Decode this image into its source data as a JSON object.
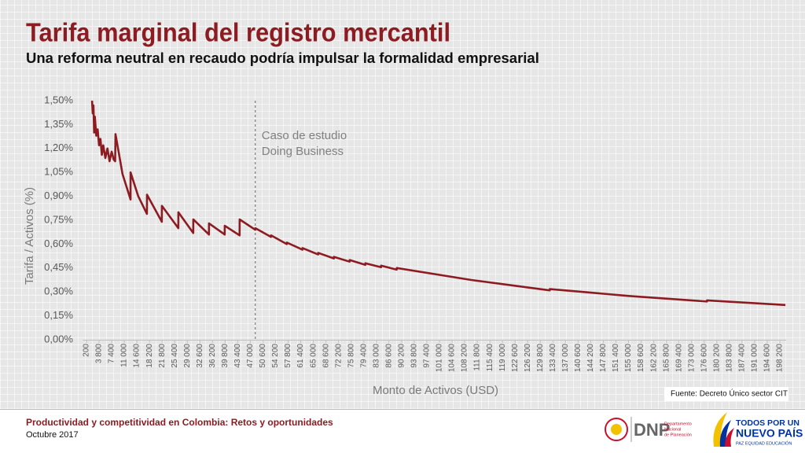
{
  "chart_data": {
    "type": "line",
    "title": "Tarifa marginal del registro mercantil",
    "subtitle": "Una reforma neutral en recaudo podría impulsar la formalidad empresarial",
    "y_label": "Tarifa / Activos (%)",
    "x_label": "Monto de Activos (USD)",
    "source": "Fuente: Decreto Único sector CIT",
    "color": "#8c1c22",
    "annotation": {
      "x": 48420,
      "lines": [
        "Caso de estudio",
        "Doing Business"
      ]
    },
    "x": [
      1800,
      2000,
      2200,
      2400,
      2600,
      3000,
      3400,
      3800,
      4200,
      4600,
      5000,
      5600,
      6200,
      6800,
      7400,
      8000,
      8400,
      8500,
      10500,
      12790,
      12800,
      15000,
      17470,
      17500,
      21730,
      21750,
      26440,
      26450,
      30700,
      30720,
      35190,
      35200,
      39680,
      39700,
      43940,
      43950,
      48420,
      48430,
      52900,
      52920,
      57400,
      57420,
      61880,
      61900,
      66370,
      66390,
      70860,
      70880,
      75340,
      75360,
      79830,
      79850,
      84310,
      84330,
      88800,
      88820,
      110100,
      132500,
      132520,
      155000,
      177400,
      177420,
      199800
    ],
    "values": [
      1.5,
      1.42,
      1.47,
      1.3,
      1.4,
      1.28,
      1.32,
      1.22,
      1.26,
      1.16,
      1.22,
      1.14,
      1.2,
      1.12,
      1.18,
      1.13,
      1.12,
      1.29,
      1.04,
      0.88,
      1.05,
      0.9,
      0.79,
      0.91,
      0.74,
      0.84,
      0.7,
      0.8,
      0.67,
      0.755,
      0.66,
      0.73,
      0.66,
      0.715,
      0.655,
      0.755,
      0.69,
      0.7,
      0.645,
      0.655,
      0.6,
      0.61,
      0.565,
      0.575,
      0.535,
      0.545,
      0.51,
      0.52,
      0.49,
      0.5,
      0.47,
      0.48,
      0.455,
      0.465,
      0.44,
      0.45,
      0.375,
      0.31,
      0.318,
      0.275,
      0.24,
      0.247,
      0.218
    ],
    "xlim": [
      -800,
      200000
    ],
    "ylim": [
      0,
      1.5
    ],
    "yticks": [
      {
        "value": 0,
        "label": "0,00%"
      },
      {
        "value": 0.15,
        "label": "0,15%"
      },
      {
        "value": 0.3,
        "label": "0,30%"
      },
      {
        "value": 0.45,
        "label": "0,45%"
      },
      {
        "value": 0.6,
        "label": "0,60%"
      },
      {
        "value": 0.75,
        "label": "0,75%"
      },
      {
        "value": 0.9,
        "label": "0,90%"
      },
      {
        "value": 1.05,
        "label": "1,05%"
      },
      {
        "value": 1.2,
        "label": "1,20%"
      },
      {
        "value": 1.35,
        "label": "1,35%"
      },
      {
        "value": 1.5,
        "label": "1,50%"
      }
    ],
    "xticks": [
      200,
      {
        "value": 3800,
        "label": "3 800"
      },
      {
        "value": 7400,
        "label": "7 400"
      },
      {
        "value": 11000,
        "label": "11 000"
      },
      {
        "value": 14600,
        "label": "14 600"
      },
      {
        "value": 18200,
        "label": "18 200"
      },
      {
        "value": 21800,
        "label": "21 800"
      },
      {
        "value": 25400,
        "label": "25 400"
      },
      {
        "value": 29000,
        "label": "29 000"
      },
      {
        "value": 32600,
        "label": "32 600"
      },
      {
        "value": 36200,
        "label": "36 200"
      },
      {
        "value": 39800,
        "label": "39 800"
      },
      {
        "value": 43400,
        "label": "43 400"
      },
      {
        "value": 47000,
        "label": "47 000"
      },
      {
        "value": 50600,
        "label": "50 600"
      },
      {
        "value": 54200,
        "label": "54 200"
      },
      {
        "value": 57800,
        "label": "57 800"
      },
      {
        "value": 61400,
        "label": "61 400"
      },
      {
        "value": 65000,
        "label": "65 000"
      },
      {
        "value": 68600,
        "label": "68 600"
      },
      {
        "value": 72200,
        "label": "72 200"
      },
      {
        "value": 75800,
        "label": "75 800"
      },
      {
        "value": 79400,
        "label": "79 400"
      },
      {
        "value": 83000,
        "label": "83 000"
      },
      {
        "value": 86600,
        "label": "86 600"
      },
      {
        "value": 90200,
        "label": "90 200"
      },
      {
        "value": 93800,
        "label": "93 800"
      },
      {
        "value": 97400,
        "label": "97 400"
      },
      {
        "value": 101000,
        "label": "101 000"
      },
      {
        "value": 104600,
        "label": "104 600"
      },
      {
        "value": 108200,
        "label": "108 200"
      },
      {
        "value": 111800,
        "label": "111 800"
      },
      {
        "value": 115400,
        "label": "115 400"
      },
      {
        "value": 119000,
        "label": "119 000"
      },
      {
        "value": 122600,
        "label": "122 600"
      },
      {
        "value": 126200,
        "label": "126 200"
      },
      {
        "value": 129800,
        "label": "129 800"
      },
      {
        "value": 133400,
        "label": "133 400"
      },
      {
        "value": 137000,
        "label": "137 000"
      },
      {
        "value": 140600,
        "label": "140 600"
      },
      {
        "value": 144200,
        "label": "144 200"
      },
      {
        "value": 147800,
        "label": "147 800"
      },
      {
        "value": 151400,
        "label": "151 400"
      },
      {
        "value": 155000,
        "label": "155 000"
      },
      {
        "value": 158600,
        "label": "158 600"
      },
      {
        "value": 162200,
        "label": "162 200"
      },
      {
        "value": 165800,
        "label": "165 800"
      },
      {
        "value": 169400,
        "label": "169 400"
      },
      {
        "value": 173000,
        "label": "173 000"
      },
      {
        "value": 176600,
        "label": "176 600"
      },
      {
        "value": 180200,
        "label": "180 200"
      },
      {
        "value": 183800,
        "label": "183 800"
      },
      {
        "value": 187400,
        "label": "187 400"
      },
      {
        "value": 191000,
        "label": "191 000"
      },
      {
        "value": 194600,
        "label": "194 600"
      },
      {
        "value": 198200,
        "label": "198 200"
      }
    ]
  },
  "footer": {
    "title": "Productividad y competitividad en Colombia: Retos y oportunidades",
    "date": "Octubre 2017",
    "dnp": "DNP",
    "dnp_name": [
      "Departamento",
      "Nacional",
      "de Planeación"
    ],
    "slogan": [
      "TODOS POR UN",
      "NUEVO PAÍS"
    ],
    "slogan_sub": "PAZ  EQUIDAD  EDUCACIÓN"
  }
}
